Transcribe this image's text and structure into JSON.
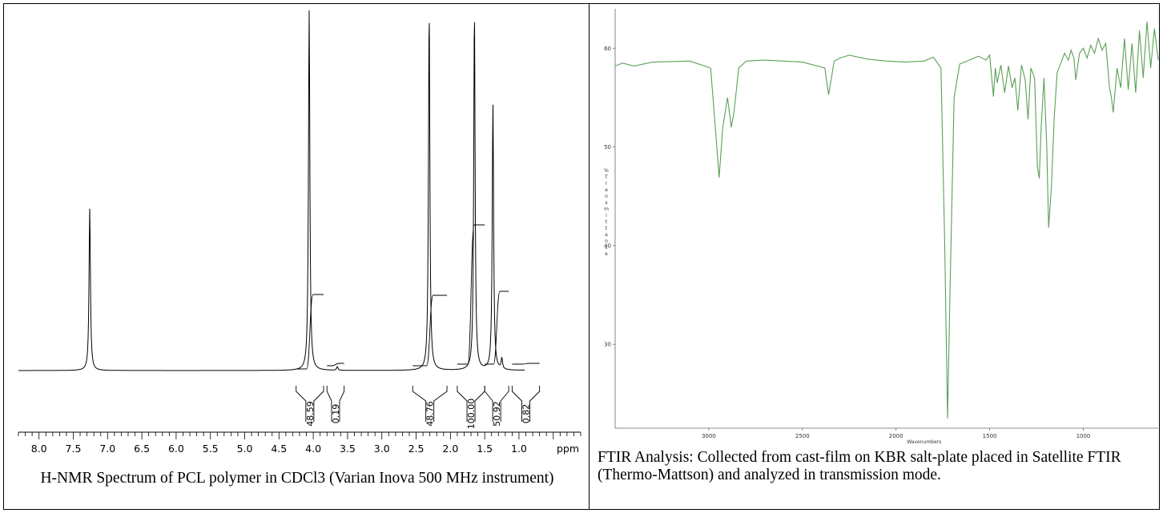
{
  "chart_data": [
    {
      "type": "line",
      "caption": "H-NMR Spectrum of PCL polymer in CDCl3 (Varian Inova 500 MHz instrument)",
      "xlabel": "ppm",
      "x_ticks": [
        "8.0",
        "7.5",
        "7.0",
        "6.5",
        "6.0",
        "5.5",
        "5.0",
        "4.5",
        "4.0",
        "3.5",
        "3.0",
        "2.5",
        "2.0",
        "1.5",
        "1.0"
      ],
      "xlim": [
        8.3,
        0.1
      ],
      "x_reversed": true,
      "ylim": [
        0,
        1.0
      ],
      "peaks": [
        {
          "ppm": 7.26,
          "height": 0.45
        },
        {
          "ppm": 4.06,
          "height": 1.0
        },
        {
          "ppm": 3.65,
          "height": 0.01
        },
        {
          "ppm": 2.31,
          "height": 1.0
        },
        {
          "ppm": 1.65,
          "height": 1.0
        },
        {
          "ppm": 1.38,
          "height": 0.74
        },
        {
          "ppm": 1.25,
          "height": 0.03
        },
        {
          "ppm": 0.88,
          "height": 0.01
        }
      ],
      "integrals": [
        {
          "label": "48.59",
          "from": 4.25,
          "to": 3.85
        },
        {
          "label": "0.19",
          "from": 3.8,
          "to": 3.55
        },
        {
          "label": "48.76",
          "from": 2.55,
          "to": 2.05
        },
        {
          "label": "100.00",
          "from": 1.9,
          "to": 1.5
        },
        {
          "label": "50.92",
          "from": 1.5,
          "to": 1.15
        },
        {
          "label": "0.82",
          "from": 1.1,
          "to": 0.7
        }
      ],
      "grid": false,
      "colors": {
        "line": "#000000"
      }
    },
    {
      "type": "line",
      "caption": "FTIR Analysis: Collected from cast-film on KBR salt-plate placed in Satellite FTIR (Thermo-Mattson) and analyzed in transmission mode.",
      "xlabel": "Wavenumbers",
      "ylabel": "% Transmittance",
      "x_ticks": [
        "3000",
        "2500",
        "2000",
        "1500",
        "1000"
      ],
      "y_ticks": [
        "30",
        "40",
        "50",
        "60"
      ],
      "xlim": [
        3500,
        600
      ],
      "x_reversed": true,
      "ylim": [
        21.5,
        64
      ],
      "baseline": 58.7,
      "x": [
        3500,
        3460,
        3400,
        3300,
        3100,
        2990,
        2965,
        2945,
        2925,
        2900,
        2880,
        2865,
        2840,
        2800,
        2700,
        2500,
        2380,
        2360,
        2345,
        2330,
        2300,
        2250,
        2150,
        2050,
        1950,
        1850,
        1800,
        1760,
        1740,
        1725,
        1710,
        1690,
        1660,
        1620,
        1560,
        1520,
        1500,
        1480,
        1470,
        1460,
        1440,
        1420,
        1400,
        1380,
        1365,
        1350,
        1330,
        1310,
        1295,
        1280,
        1260,
        1245,
        1235,
        1225,
        1210,
        1195,
        1185,
        1170,
        1155,
        1140,
        1120,
        1100,
        1080,
        1065,
        1050,
        1040,
        1020,
        1000,
        980,
        960,
        940,
        920,
        900,
        880,
        860,
        850,
        840,
        820,
        800,
        780,
        760,
        740,
        720,
        700,
        680,
        660,
        640,
        620,
        600
      ],
      "y": [
        58.2,
        58.5,
        58.2,
        58.6,
        58.7,
        58.0,
        52.0,
        46.9,
        52.0,
        55.0,
        52.0,
        53.6,
        58.0,
        58.7,
        58.8,
        58.6,
        58.0,
        55.3,
        57.0,
        58.7,
        59.0,
        59.3,
        58.9,
        58.7,
        58.6,
        58.7,
        59.1,
        58.0,
        40.0,
        22.5,
        37.0,
        55.0,
        58.4,
        58.7,
        59.2,
        58.8,
        59.3,
        55.1,
        58.0,
        56.5,
        58.3,
        55.5,
        58.2,
        56.0,
        57.0,
        53.7,
        58.3,
        56.8,
        52.8,
        58.0,
        57.0,
        48.0,
        46.8,
        52.0,
        57.0,
        50.0,
        41.8,
        46.0,
        53.0,
        57.5,
        58.5,
        59.5,
        58.8,
        59.8,
        59.0,
        56.8,
        59.5,
        60.0,
        59.0,
        60.3,
        59.5,
        61.0,
        59.8,
        60.5,
        56.0,
        55.0,
        53.5,
        58.0,
        56.0,
        61.0,
        55.8,
        60.5,
        55.5,
        61.8,
        57.0,
        62.7,
        58.0,
        62.0,
        58.8
      ],
      "grid": false,
      "colors": {
        "line": "#5aa055"
      }
    }
  ]
}
